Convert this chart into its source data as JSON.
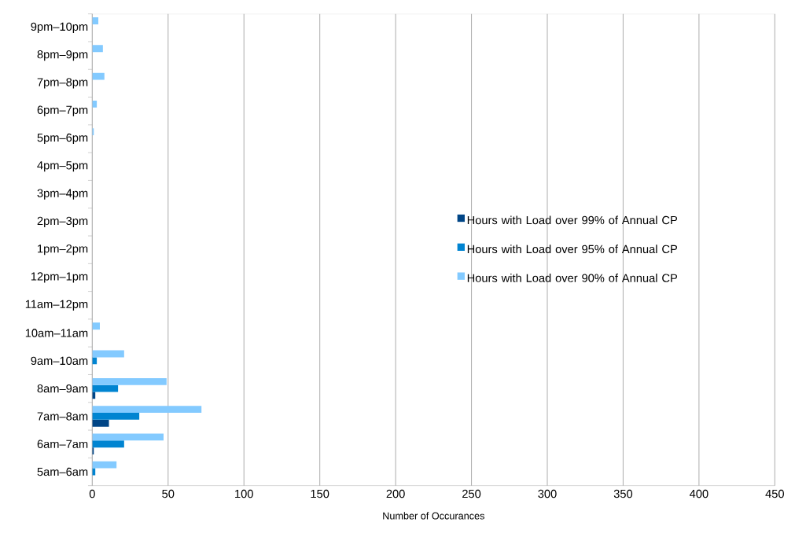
{
  "chart_data": {
    "type": "bar",
    "orientation": "horizontal",
    "xlabel": "Number of Occurances",
    "categories": [
      "9pm–10pm",
      "8pm–9pm",
      "7pm–8pm",
      "6pm–7pm",
      "5pm–6pm",
      "4pm–5pm",
      "3pm–4pm",
      "2pm–3pm",
      "1pm–2pm",
      "12pm–1pm",
      "11am–12pm",
      "10am–11am",
      "9am–10am",
      "8am–9am",
      "7am–8am",
      "6am–7am",
      "5am–6am"
    ],
    "series": [
      {
        "name": "Hours with Load over 99% of Annual CP",
        "color": "#004586",
        "values": [
          0,
          0,
          0,
          0,
          0,
          0,
          0,
          0,
          0,
          0,
          0,
          0,
          0,
          2,
          11,
          1,
          0
        ]
      },
      {
        "name": "Hours with Load over 95% of Annual CP",
        "color": "#0084d1",
        "values": [
          0,
          0,
          0,
          0,
          0,
          0,
          0,
          0,
          0,
          0,
          0,
          0,
          3,
          17,
          31,
          21,
          2
        ]
      },
      {
        "name": "Hours with Load over 90% of Annual CP",
        "color": "#83caff",
        "values": [
          4,
          7,
          8,
          3,
          1,
          0,
          0,
          0,
          0,
          0,
          0,
          5,
          21,
          49,
          72,
          47,
          16
        ]
      }
    ],
    "xlim": [
      0,
      450
    ],
    "xticks": [
      0,
      50,
      100,
      150,
      200,
      250,
      300,
      350,
      400,
      450
    ],
    "grid": "x",
    "legend": "right"
  }
}
